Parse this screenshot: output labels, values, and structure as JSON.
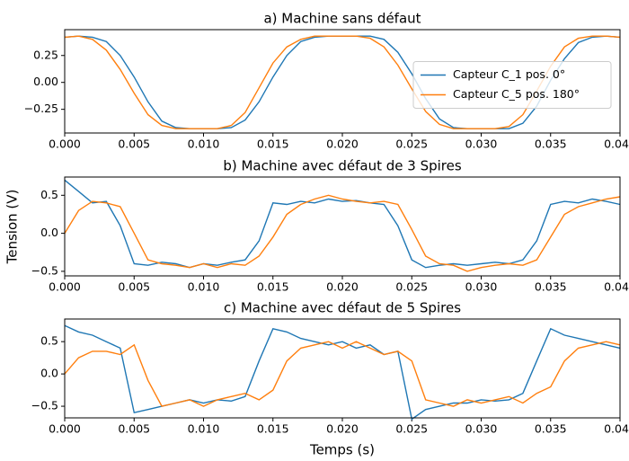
{
  "chart_data": [
    {
      "type": "line",
      "title": "a) Machine sans défaut",
      "x": [
        0,
        0.001,
        0.002,
        0.003,
        0.004,
        0.005,
        0.006,
        0.007,
        0.008,
        0.009,
        0.01,
        0.011,
        0.012,
        0.013,
        0.014,
        0.015,
        0.016,
        0.017,
        0.018,
        0.019,
        0.02,
        0.021,
        0.022,
        0.023,
        0.024,
        0.025,
        0.026,
        0.027,
        0.028,
        0.029,
        0.03,
        0.031,
        0.032,
        0.033,
        0.034,
        0.035,
        0.036,
        0.037,
        0.038,
        0.039,
        0.04
      ],
      "series": [
        {
          "name": "Capteur C_1 pos. 0°",
          "color": "#1f77b4",
          "values": [
            0.42,
            0.43,
            0.42,
            0.38,
            0.25,
            0.05,
            -0.18,
            -0.36,
            -0.42,
            -0.43,
            -0.43,
            -0.43,
            -0.42,
            -0.35,
            -0.18,
            0.05,
            0.25,
            0.38,
            0.42,
            0.43,
            0.43,
            0.43,
            0.43,
            0.4,
            0.28,
            0.08,
            -0.15,
            -0.34,
            -0.42,
            -0.43,
            -0.43,
            -0.43,
            -0.43,
            -0.38,
            -0.22,
            0.02,
            0.22,
            0.37,
            0.42,
            0.43,
            0.42
          ]
        },
        {
          "name": "Capteur C_5 pos. 180°",
          "color": "#ff7f0e",
          "values": [
            0.42,
            0.43,
            0.4,
            0.3,
            0.12,
            -0.1,
            -0.3,
            -0.4,
            -0.43,
            -0.43,
            -0.43,
            -0.43,
            -0.4,
            -0.28,
            -0.05,
            0.18,
            0.33,
            0.4,
            0.43,
            0.43,
            0.43,
            0.43,
            0.41,
            0.33,
            0.16,
            -0.06,
            -0.27,
            -0.39,
            -0.43,
            -0.43,
            -0.43,
            -0.43,
            -0.41,
            -0.3,
            -0.08,
            0.15,
            0.33,
            0.41,
            0.43,
            0.43,
            0.42
          ]
        }
      ],
      "xlim": [
        0,
        0.04
      ],
      "ylim": [
        -0.47,
        0.49
      ],
      "xticks": [
        {
          "value": 0,
          "label": "0.000"
        },
        {
          "value": 0.005,
          "label": "0.005"
        },
        {
          "value": 0.01,
          "label": "0.010"
        },
        {
          "value": 0.015,
          "label": "0.015"
        },
        {
          "value": 0.02,
          "label": "0.020"
        },
        {
          "value": 0.025,
          "label": "0.025"
        },
        {
          "value": 0.03,
          "label": "0.030"
        },
        {
          "value": 0.035,
          "label": "0.035"
        },
        {
          "value": 0.04,
          "label": "0.040"
        }
      ],
      "yticks": [
        {
          "value": -0.25,
          "label": "−0.25"
        },
        {
          "value": 0,
          "label": "0.00"
        },
        0.25
      ],
      "legend": "right"
    },
    {
      "type": "line",
      "title": "b) Machine avec défaut de 3 Spires",
      "ylabel": "Tension (V)",
      "x": [
        0,
        0.001,
        0.002,
        0.003,
        0.004,
        0.005,
        0.006,
        0.007,
        0.008,
        0.009,
        0.01,
        0.011,
        0.012,
        0.013,
        0.014,
        0.015,
        0.016,
        0.017,
        0.018,
        0.019,
        0.02,
        0.021,
        0.022,
        0.023,
        0.024,
        0.025,
        0.026,
        0.027,
        0.028,
        0.029,
        0.03,
        0.031,
        0.032,
        0.033,
        0.034,
        0.035,
        0.036,
        0.037,
        0.038,
        0.039,
        0.04
      ],
      "series": [
        {
          "color": "#1f77b4",
          "values": [
            0.7,
            0.55,
            0.4,
            0.42,
            0.1,
            -0.4,
            -0.42,
            -0.38,
            -0.4,
            -0.45,
            -0.4,
            -0.42,
            -0.38,
            -0.35,
            -0.1,
            0.4,
            0.38,
            0.42,
            0.4,
            0.45,
            0.42,
            0.43,
            0.4,
            0.38,
            0.1,
            -0.35,
            -0.45,
            -0.42,
            -0.4,
            -0.42,
            -0.4,
            -0.38,
            -0.4,
            -0.35,
            -0.1,
            0.38,
            0.42,
            0.4,
            0.45,
            0.42,
            0.38
          ]
        },
        {
          "color": "#ff7f0e",
          "values": [
            0.0,
            0.3,
            0.42,
            0.4,
            0.35,
            0.0,
            -0.35,
            -0.4,
            -0.42,
            -0.45,
            -0.4,
            -0.45,
            -0.4,
            -0.42,
            -0.3,
            -0.05,
            0.25,
            0.38,
            0.45,
            0.5,
            0.45,
            0.42,
            0.4,
            0.42,
            0.38,
            0.05,
            -0.3,
            -0.4,
            -0.42,
            -0.5,
            -0.45,
            -0.42,
            -0.4,
            -0.42,
            -0.35,
            -0.05,
            0.25,
            0.35,
            0.4,
            0.45,
            0.48
          ]
        }
      ],
      "xlim": [
        0,
        0.04
      ],
      "ylim": [
        -0.56,
        0.74
      ],
      "xticks": [
        {
          "value": 0,
          "label": "0.000"
        },
        {
          "value": 0.005,
          "label": "0.005"
        },
        {
          "value": 0.01,
          "label": "0.010"
        },
        {
          "value": 0.015,
          "label": "0.015"
        },
        {
          "value": 0.02,
          "label": "0.020"
        },
        {
          "value": 0.025,
          "label": "0.025"
        },
        {
          "value": 0.03,
          "label": "0.030"
        },
        {
          "value": 0.035,
          "label": "0.035"
        },
        {
          "value": 0.04,
          "label": "0.040"
        }
      ],
      "yticks": [
        {
          "value": -0.5,
          "label": "−0.5"
        },
        {
          "value": 0,
          "label": "0.0"
        },
        0.5
      ]
    },
    {
      "type": "line",
      "title": "c) Machine avec défaut de 5 Spires",
      "xlabel": "Temps (s)",
      "x": [
        0,
        0.001,
        0.002,
        0.003,
        0.004,
        0.005,
        0.006,
        0.007,
        0.008,
        0.009,
        0.01,
        0.011,
        0.012,
        0.013,
        0.014,
        0.015,
        0.016,
        0.017,
        0.018,
        0.019,
        0.02,
        0.021,
        0.022,
        0.023,
        0.024,
        0.025,
        0.026,
        0.027,
        0.028,
        0.029,
        0.03,
        0.031,
        0.032,
        0.033,
        0.034,
        0.035,
        0.036,
        0.037,
        0.038,
        0.039,
        0.04
      ],
      "series": [
        {
          "color": "#1f77b4",
          "values": [
            0.75,
            0.65,
            0.6,
            0.5,
            0.4,
            -0.6,
            -0.55,
            -0.5,
            -0.45,
            -0.4,
            -0.45,
            -0.4,
            -0.42,
            -0.35,
            0.2,
            0.7,
            0.65,
            0.55,
            0.5,
            0.45,
            0.5,
            0.4,
            0.45,
            0.3,
            0.35,
            -0.7,
            -0.55,
            -0.5,
            -0.45,
            -0.45,
            -0.4,
            -0.42,
            -0.4,
            -0.3,
            0.2,
            0.7,
            0.6,
            0.55,
            0.5,
            0.45,
            0.4
          ]
        },
        {
          "color": "#ff7f0e",
          "values": [
            0.0,
            0.25,
            0.35,
            0.35,
            0.3,
            0.45,
            -0.1,
            -0.5,
            -0.45,
            -0.4,
            -0.5,
            -0.4,
            -0.35,
            -0.3,
            -0.4,
            -0.25,
            0.2,
            0.4,
            0.45,
            0.5,
            0.4,
            0.5,
            0.4,
            0.3,
            0.35,
            0.2,
            -0.4,
            -0.45,
            -0.5,
            -0.4,
            -0.45,
            -0.4,
            -0.35,
            -0.45,
            -0.3,
            -0.2,
            0.2,
            0.4,
            0.45,
            0.5,
            0.45
          ]
        }
      ],
      "xlim": [
        0,
        0.04
      ],
      "ylim": [
        -0.68,
        0.85
      ],
      "xticks": [
        {
          "value": 0,
          "label": "0.000"
        },
        {
          "value": 0.005,
          "label": "0.005"
        },
        {
          "value": 0.01,
          "label": "0.010"
        },
        {
          "value": 0.015,
          "label": "0.015"
        },
        {
          "value": 0.02,
          "label": "0.020"
        },
        {
          "value": 0.025,
          "label": "0.025"
        },
        {
          "value": 0.03,
          "label": "0.030"
        },
        {
          "value": 0.035,
          "label": "0.035"
        },
        {
          "value": 0.04,
          "label": "0.040"
        }
      ],
      "yticks": [
        {
          "value": -0.5,
          "label": "−0.5"
        },
        {
          "value": 0,
          "label": "0.0"
        },
        0.5
      ]
    }
  ]
}
